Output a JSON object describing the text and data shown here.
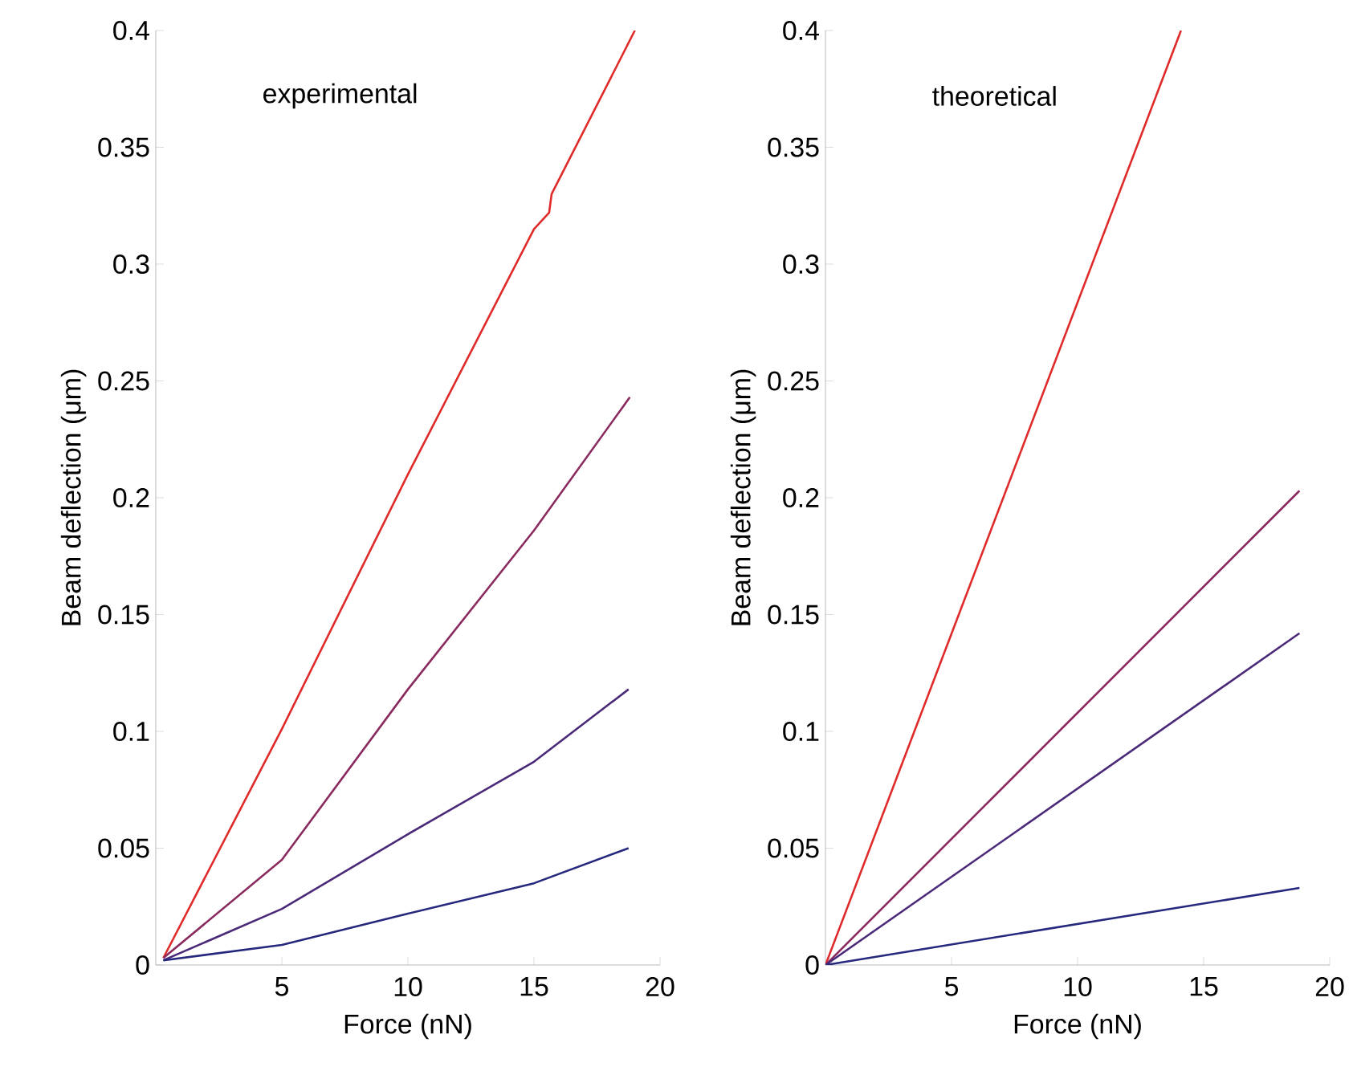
{
  "chart_data": [
    {
      "type": "line",
      "xlabel": "Force (nN)",
      "ylabel": "Beam deflection (μm)",
      "annotations": [
        "experimental"
      ],
      "xlim": [
        0,
        20
      ],
      "ylim": [
        0,
        0.4
      ],
      "xticks": [
        5,
        10,
        15,
        20
      ],
      "yticks": [
        0,
        0.05,
        0.1,
        0.15,
        0.2,
        0.25,
        0.3,
        0.35,
        0.4
      ],
      "grid": false,
      "marker": "none",
      "line_style": "solid",
      "series": [
        {
          "color": "#e02a2a",
          "x": [
            0.3,
            5,
            10,
            15,
            15.6,
            15.7,
            19.0
          ],
          "values": [
            0.003,
            0.101,
            0.21,
            0.315,
            0.322,
            0.33,
            0.4
          ]
        },
        {
          "color": "#8a2a5e",
          "x": [
            0.3,
            5,
            10,
            15,
            18.8
          ],
          "values": [
            0.003,
            0.045,
            0.118,
            0.186,
            0.243
          ]
        },
        {
          "color": "#4a2a78",
          "x": [
            0.3,
            5,
            10,
            15,
            18.75
          ],
          "values": [
            0.002,
            0.024,
            0.056,
            0.087,
            0.118
          ]
        },
        {
          "color": "#26287e",
          "x": [
            0.3,
            5,
            10,
            15,
            18.75
          ],
          "values": [
            0.002,
            0.0086,
            0.022,
            0.035,
            0.05
          ]
        }
      ]
    },
    {
      "type": "line",
      "xlabel": "Force (nN)",
      "ylabel": "Beam deflection (μm)",
      "annotations": [
        "theoretical"
      ],
      "xlim": [
        0,
        20
      ],
      "ylim": [
        0,
        0.4
      ],
      "xticks": [
        5,
        10,
        15,
        20
      ],
      "yticks": [
        0,
        0.05,
        0.1,
        0.15,
        0.2,
        0.25,
        0.3,
        0.35,
        0.4
      ],
      "grid": false,
      "marker": "none",
      "line_style": "solid",
      "series": [
        {
          "color": "#e02a2a",
          "x": [
            0,
            14.1
          ],
          "values": [
            0,
            0.4
          ]
        },
        {
          "color": "#8a2a5e",
          "x": [
            0,
            18.8
          ],
          "values": [
            0,
            0.203
          ]
        },
        {
          "color": "#4a2a78",
          "x": [
            0,
            18.8
          ],
          "values": [
            0,
            0.142
          ]
        },
        {
          "color": "#26287e",
          "x": [
            0,
            18.8
          ],
          "values": [
            0,
            0.033
          ]
        }
      ]
    }
  ]
}
